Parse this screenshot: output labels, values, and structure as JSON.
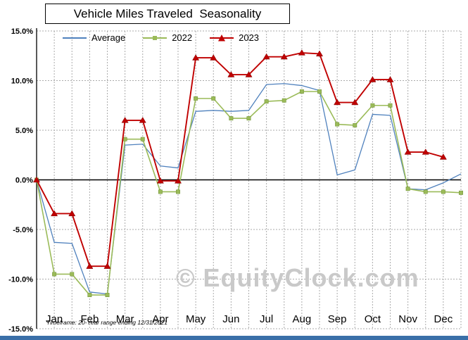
{
  "title": "Vehicle Miles Traveled  Seasonality",
  "watermark": "© EquityClock.com",
  "footnote": "Timeframe: 20-Year range ending 12/31/2021",
  "chart_data": {
    "type": "line",
    "title": "Vehicle Miles Traveled Seasonality",
    "xlabel": "",
    "ylabel": "",
    "ylim": [
      -15,
      15
    ],
    "grid": true,
    "legend_position": "top-inside",
    "x_note": "two data points per month (semi-monthly), x index 0-24",
    "categories": [
      "Jan",
      "Feb",
      "Mar",
      "Apr",
      "May",
      "Jun",
      "Jul",
      "Aug",
      "Sep",
      "Oct",
      "Nov",
      "Dec"
    ],
    "y_tick_labels": [
      "15.0%",
      "10.0%",
      "5.0%",
      "0.0%",
      "-5.0%",
      "-10.0%",
      "-15.0%"
    ],
    "y_tick_values": [
      15,
      10,
      5,
      0,
      -5,
      -10,
      -15
    ],
    "series": [
      {
        "name": "Average",
        "color": "#4f81bd",
        "marker": "none",
        "values": [
          0.0,
          -6.3,
          -6.4,
          -11.3,
          -11.5,
          3.5,
          3.6,
          1.4,
          1.2,
          6.9,
          7.0,
          6.9,
          7.0,
          9.6,
          9.7,
          9.5,
          9.0,
          0.5,
          1.0,
          6.6,
          6.5,
          -0.9,
          -1.0,
          -0.3,
          0.6
        ]
      },
      {
        "name": "2022",
        "color": "#9bbb59",
        "marker": "square",
        "values": [
          0.0,
          -9.5,
          -9.5,
          -11.6,
          -11.6,
          4.1,
          4.1,
          -1.2,
          -1.2,
          8.2,
          8.2,
          6.2,
          6.2,
          7.9,
          8.0,
          8.9,
          8.9,
          5.6,
          5.5,
          7.5,
          7.5,
          -0.9,
          -1.2,
          -1.2,
          -1.3
        ]
      },
      {
        "name": "2023",
        "color": "#c00000",
        "marker": "triangle",
        "values": [
          0.0,
          -3.4,
          -3.4,
          -8.7,
          -8.7,
          6.0,
          6.0,
          -0.1,
          -0.1,
          12.3,
          12.3,
          10.6,
          10.6,
          12.4,
          12.4,
          12.8,
          12.7,
          7.8,
          7.8,
          10.1,
          10.1,
          2.8,
          2.8,
          2.3
        ]
      }
    ]
  }
}
